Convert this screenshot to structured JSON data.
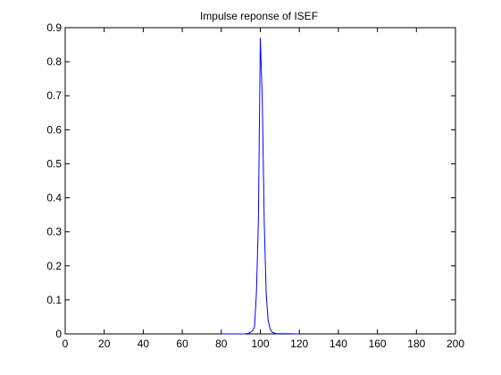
{
  "chart_data": {
    "type": "line",
    "title": "Impulse reponse of ISEF",
    "xlabel": "",
    "ylabel": "",
    "xlim": [
      0,
      200
    ],
    "ylim": [
      0,
      0.9
    ],
    "xticks": [
      "0",
      "20",
      "40",
      "60",
      "80",
      "100",
      "120",
      "140",
      "160",
      "180",
      "200"
    ],
    "yticks": [
      "0",
      "0.1",
      "0.2",
      "0.3",
      "0.4",
      "0.5",
      "0.6",
      "0.7",
      "0.8",
      "0.9"
    ],
    "grid": false,
    "legend": "none",
    "line_color": "#0000ff",
    "series": [
      {
        "x": [
          80,
          92,
          94,
          95,
          96,
          97,
          98,
          99,
          100,
          101,
          102,
          103,
          104,
          105,
          106,
          108,
          120
        ],
        "values": [
          0.0,
          0.0,
          0.002,
          0.005,
          0.009,
          0.02,
          0.12,
          0.33,
          0.87,
          0.69,
          0.33,
          0.12,
          0.04,
          0.015,
          0.005,
          0.001,
          0.0
        ]
      }
    ]
  }
}
